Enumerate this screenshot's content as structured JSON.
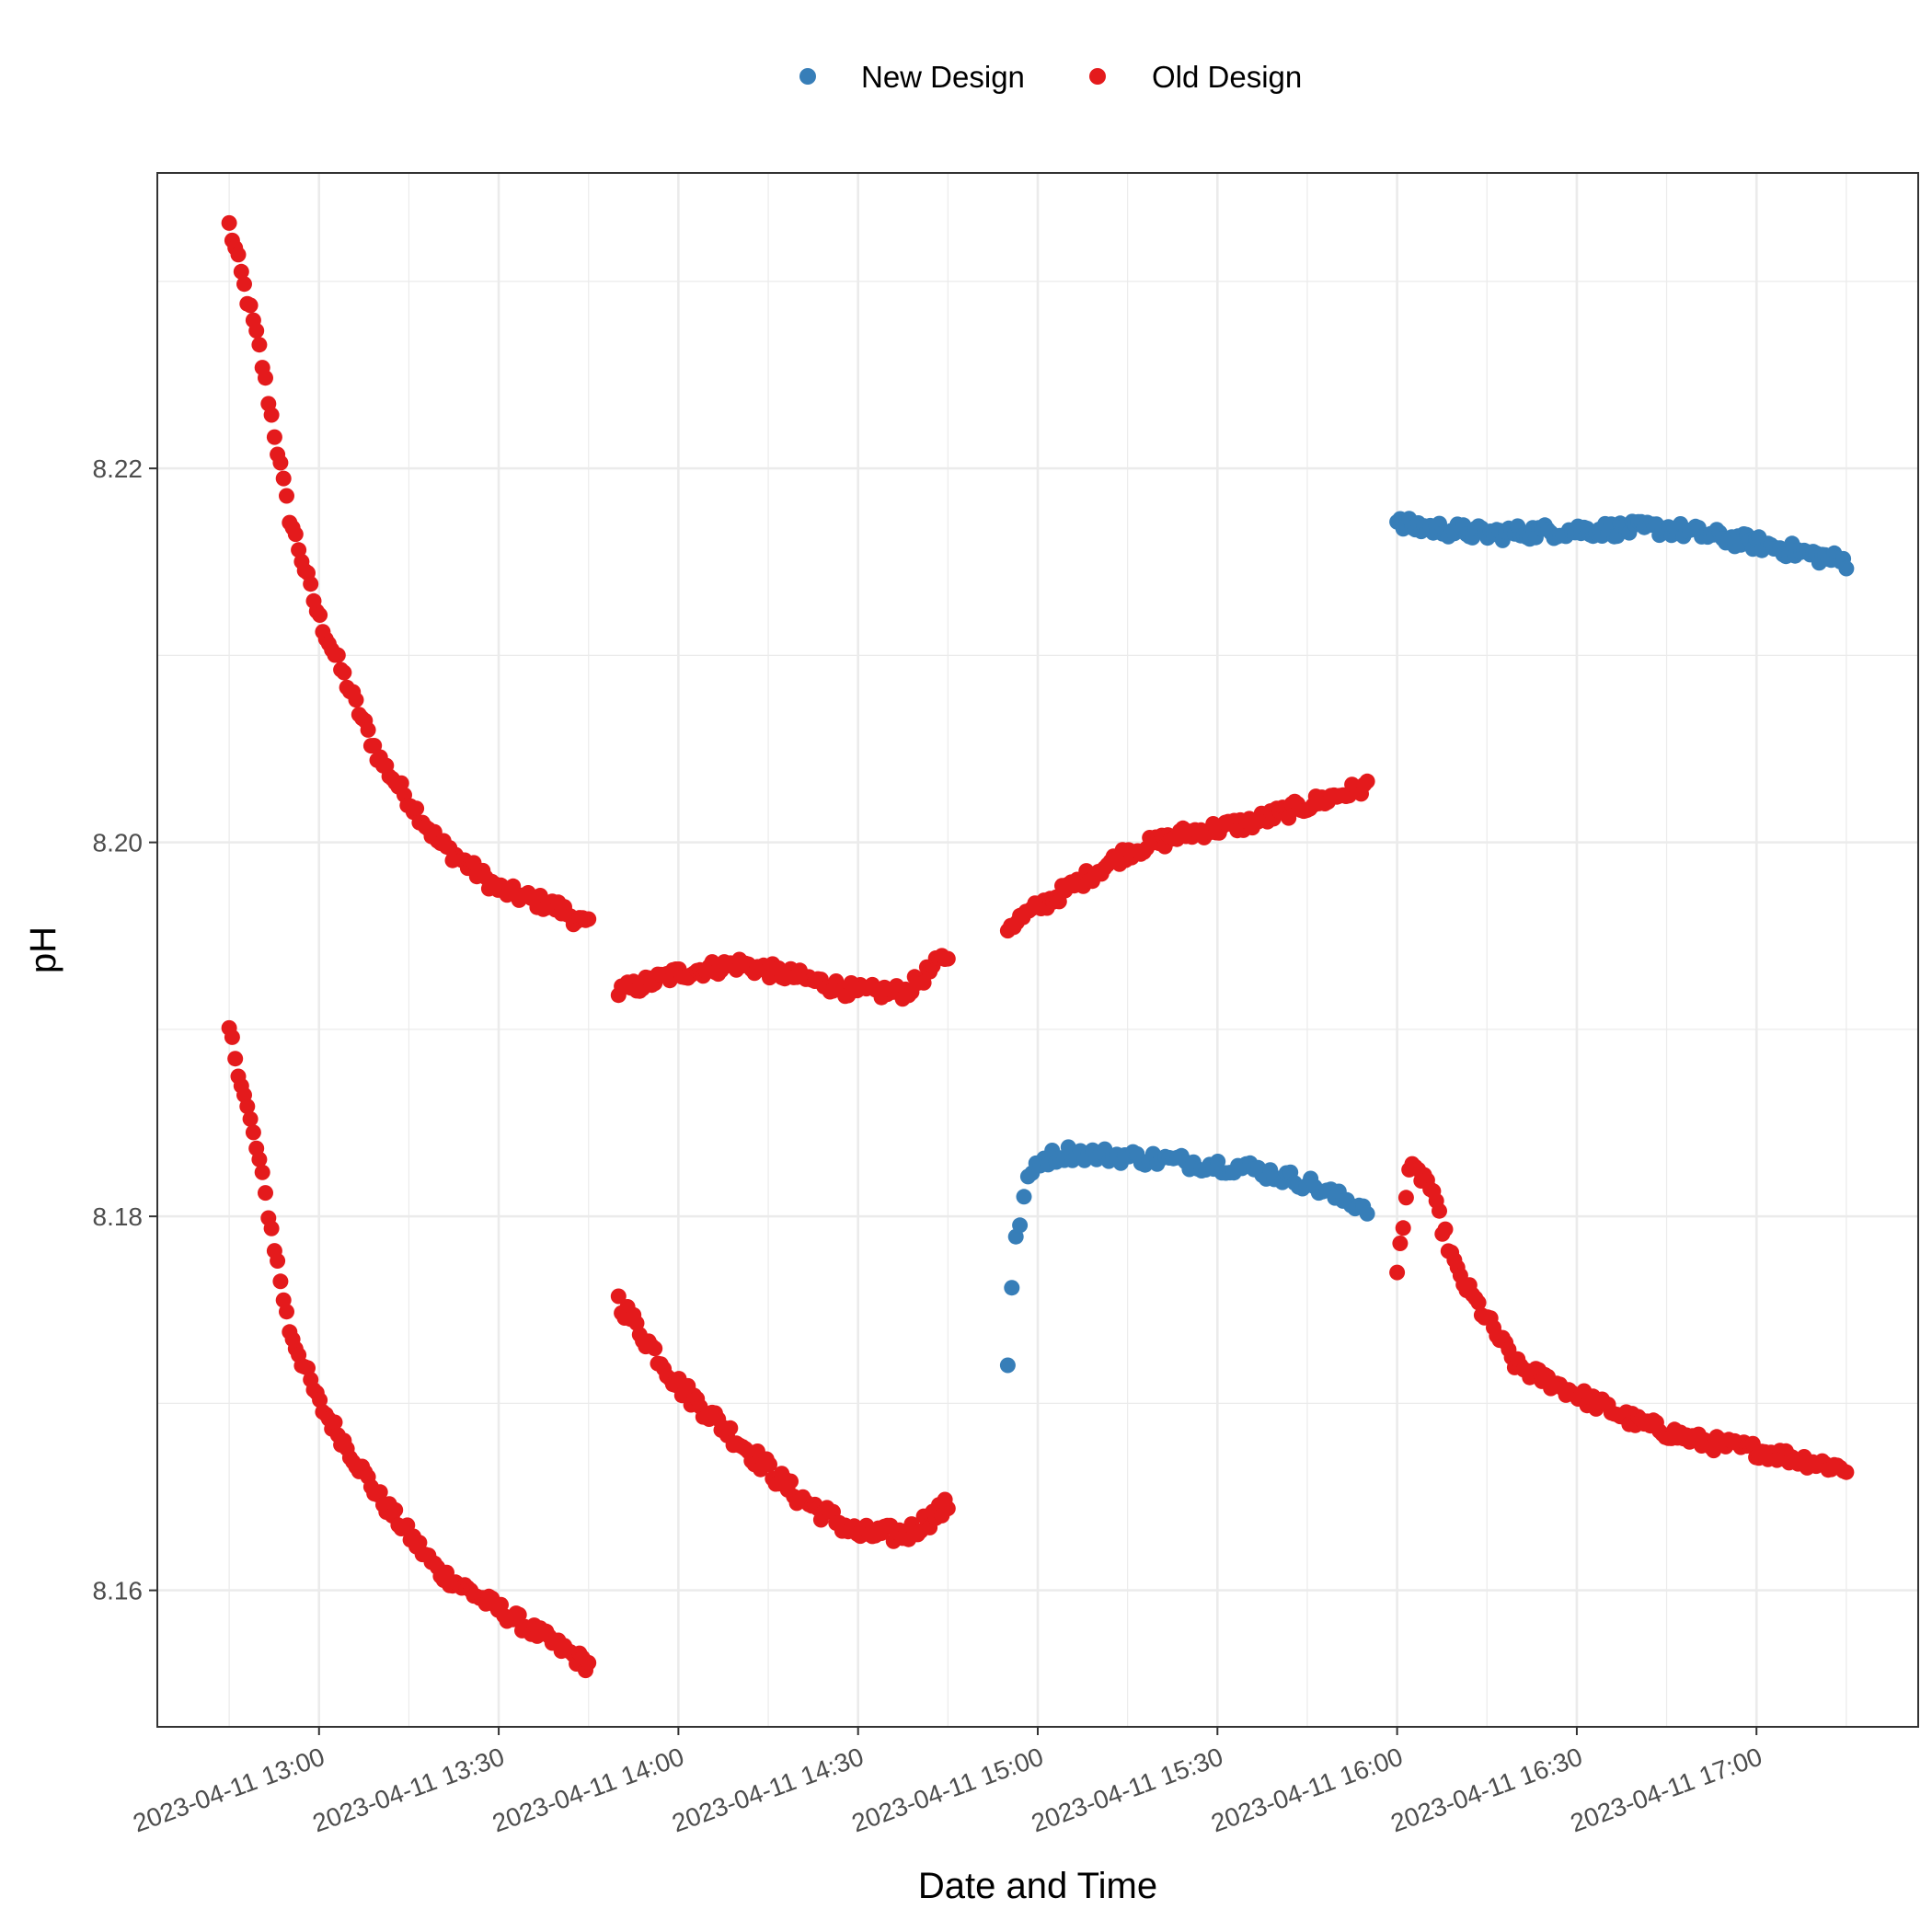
{
  "chart_data": {
    "type": "scatter",
    "title": "",
    "xlabel": "Date and Time",
    "ylabel": "pH",
    "x_tick_labels": [
      "2023-04-11 13:00",
      "2023-04-11 13:30",
      "2023-04-11 14:00",
      "2023-04-11 14:30",
      "2023-04-11 15:00",
      "2023-04-11 15:30",
      "2023-04-11 16:00",
      "2023-04-11 16:30",
      "2023-04-11 17:00"
    ],
    "x_ticks": [
      "2023-04-11 13:00",
      "2023-04-11 13:30",
      "2023-04-11 14:00",
      "2023-04-11 14:30",
      "2023-04-11 15:00",
      "2023-04-11 15:30",
      "2023-04-11 16:00",
      "2023-04-11 16:30",
      "2023-04-11 17:00"
    ],
    "xlim": [
      "2023-04-11 12:33",
      "2023-04-11 17:27"
    ],
    "y_ticks": [
      8.16,
      8.18,
      8.2,
      8.22
    ],
    "y_tick_labels": [
      "8.16",
      "8.18",
      "8.20",
      "8.22"
    ],
    "ylim": [
      8.1527,
      8.2358
    ],
    "grid": true,
    "legend_position": "top",
    "series": [
      {
        "name": "New Design",
        "color": "#377EB8",
        "segments": [
          {
            "points": [
              [
                "2023-04-11 14:55",
                8.1722
              ],
              [
                "2023-04-11 14:56",
                8.178
              ],
              [
                "2023-04-11 14:58",
                8.1815
              ],
              [
                "2023-04-11 15:00",
                8.183
              ],
              [
                "2023-04-11 15:05",
                8.1834
              ],
              [
                "2023-04-11 15:15",
                8.1832
              ],
              [
                "2023-04-11 15:25",
                8.1829
              ],
              [
                "2023-04-11 15:35",
                8.1826
              ],
              [
                "2023-04-11 15:45",
                8.1818
              ],
              [
                "2023-04-11 15:50",
                8.181
              ],
              [
                "2023-04-11 15:55",
                8.1805
              ]
            ],
            "n": 90,
            "noise": 0.0004
          },
          {
            "points": [
              [
                "2023-04-11 16:00",
                8.217
              ],
              [
                "2023-04-11 16:15",
                8.2165
              ],
              [
                "2023-04-11 16:30",
                8.2167
              ],
              [
                "2023-04-11 16:45",
                8.2168
              ],
              [
                "2023-04-11 17:00",
                8.216
              ],
              [
                "2023-04-11 17:15",
                8.215
              ]
            ],
            "n": 150,
            "noise": 0.0004
          }
        ]
      },
      {
        "name": "Old Design",
        "color": "#E41A1C",
        "segments": [
          {
            "points": [
              [
                "2023-04-11 12:45",
                8.233
              ],
              [
                "2023-04-11 12:50",
                8.2265
              ],
              [
                "2023-04-11 12:55",
                8.2175
              ],
              [
                "2023-04-11 13:00",
                8.212
              ],
              [
                "2023-04-11 13:10",
                8.2045
              ],
              [
                "2023-04-11 13:20",
                8.2
              ],
              [
                "2023-04-11 13:30",
                8.1975
              ],
              [
                "2023-04-11 13:40",
                8.1965
              ],
              [
                "2023-04-11 13:45",
                8.1955
              ]
            ],
            "n": 120,
            "noise": 0.0004
          },
          {
            "points": [
              [
                "2023-04-11 12:45",
                8.19
              ],
              [
                "2023-04-11 12:50",
                8.183
              ],
              [
                "2023-04-11 12:55",
                8.174
              ],
              [
                "2023-04-11 13:00",
                8.17
              ],
              [
                "2023-04-11 13:10",
                8.165
              ],
              [
                "2023-04-11 13:20",
                8.161
              ],
              [
                "2023-04-11 13:30",
                8.159
              ],
              [
                "2023-04-11 13:40",
                8.157
              ],
              [
                "2023-04-11 13:45",
                8.156
              ]
            ],
            "n": 120,
            "noise": 0.0004
          },
          {
            "points": [
              [
                "2023-04-11 13:50",
                8.192
              ],
              [
                "2023-04-11 14:00",
                8.193
              ],
              [
                "2023-04-11 14:10",
                8.1935
              ],
              [
                "2023-04-11 14:20",
                8.1928
              ],
              [
                "2023-04-11 14:30",
                8.192
              ],
              [
                "2023-04-11 14:38",
                8.192
              ],
              [
                "2023-04-11 14:45",
                8.194
              ]
            ],
            "n": 110,
            "noise": 0.0004
          },
          {
            "points": [
              [
                "2023-04-11 13:50",
                8.1755
              ],
              [
                "2023-04-11 14:00",
                8.171
              ],
              [
                "2023-04-11 14:10",
                8.168
              ],
              [
                "2023-04-11 14:20",
                8.165
              ],
              [
                "2023-04-11 14:30",
                8.163
              ],
              [
                "2023-04-11 14:38",
                8.163
              ],
              [
                "2023-04-11 14:45",
                8.1645
              ]
            ],
            "n": 110,
            "noise": 0.0005
          },
          {
            "points": [
              [
                "2023-04-11 14:55",
                8.1955
              ],
              [
                "2023-04-11 15:05",
                8.1975
              ],
              [
                "2023-04-11 15:15",
                8.1995
              ],
              [
                "2023-04-11 15:25",
                8.2005
              ],
              [
                "2023-04-11 15:35",
                8.201
              ],
              [
                "2023-04-11 15:45",
                8.202
              ],
              [
                "2023-04-11 15:55",
                8.203
              ]
            ],
            "n": 120,
            "noise": 0.0004
          },
          {
            "points": [
              [
                "2023-04-11 16:00",
                8.177
              ],
              [
                "2023-04-11 16:02",
                8.1825
              ],
              [
                "2023-04-11 16:05",
                8.182
              ],
              [
                "2023-04-11 16:10",
                8.177
              ],
              [
                "2023-04-11 16:20",
                8.172
              ],
              [
                "2023-04-11 16:30",
                8.1705
              ],
              [
                "2023-04-11 16:40",
                8.169
              ],
              [
                "2023-04-11 16:50",
                8.168
              ],
              [
                "2023-04-11 17:00",
                8.1675
              ],
              [
                "2023-04-11 17:15",
                8.1665
              ]
            ],
            "n": 150,
            "noise": 0.0004
          }
        ]
      }
    ]
  }
}
